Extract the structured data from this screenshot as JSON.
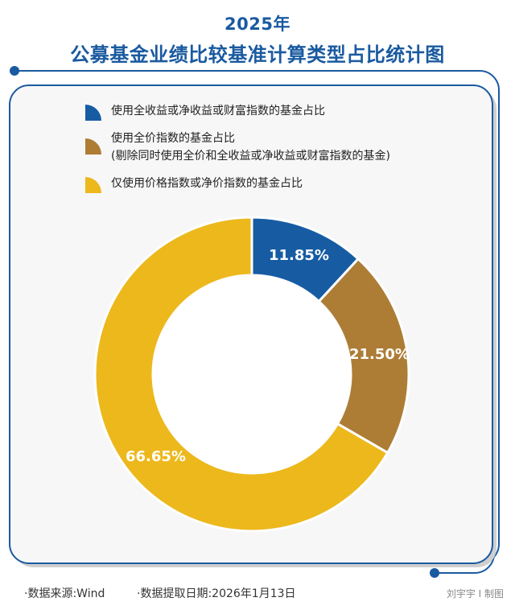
{
  "header": {
    "year": "2025年",
    "title": "公募基金业绩比较基准计算类型占比统计图"
  },
  "legend": {
    "items": [
      {
        "label": "使用全收益或净收益或财富指数的基金占比",
        "sublabel": "",
        "color": "#175ca3",
        "icon": "quarter-circle-icon"
      },
      {
        "label": "使用全价指数的基金占比",
        "sublabel": "(剔除同时使用全价和全收益或净收益或财富指数的基金)",
        "color": "#ad7d36",
        "icon": "quarter-circle-icon"
      },
      {
        "label": "仅使用价格指数或净价指数的基金占比",
        "sublabel": "",
        "color": "#ecb81c",
        "icon": "quarter-circle-icon"
      }
    ]
  },
  "chart_data": {
    "type": "pie",
    "subtype": "donut",
    "title": "2025年 公募基金业绩比较基准计算类型占比统计图",
    "categories": [
      "使用全收益或净收益或财富指数的基金占比",
      "使用全价指数的基金占比(剔除同时使用全价和全收益或净收益或财富指数的基金)",
      "仅使用价格指数或净价指数的基金占比"
    ],
    "values": [
      11.85,
      21.5,
      66.65
    ],
    "labels": [
      "11.85%",
      "21.50%",
      "66.65%"
    ],
    "colors": [
      "#175ca3",
      "#ad7d36",
      "#ecb81c"
    ],
    "start_angle": "12 o'clock, clockwise",
    "legend_position": "top-left"
  },
  "footer": {
    "source": "·数据来源:Wind",
    "date": "·数据提取日期:2026年1月13日",
    "credit": "刘宇宇 I 制图"
  },
  "colors": {
    "accent": "#1a5aa0",
    "card_bg": "#f7f7f8",
    "shadow": "#cfcfcf"
  }
}
